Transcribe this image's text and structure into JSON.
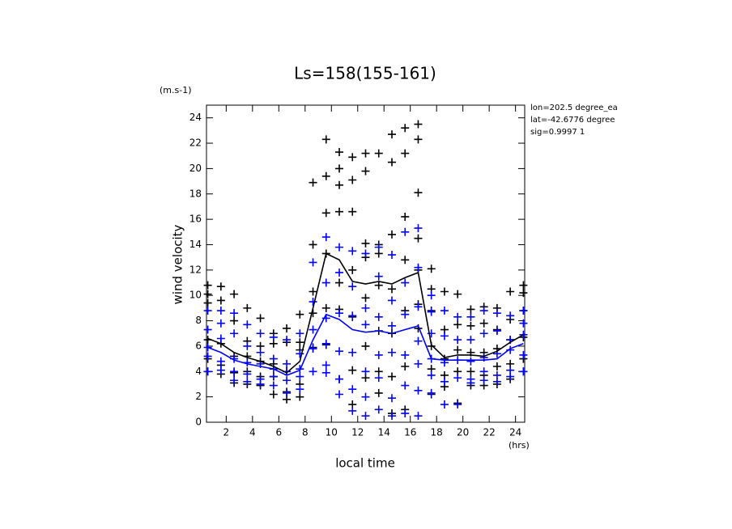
{
  "chart_data": {
    "type": "scatter",
    "title": "Ls=158(155-161)",
    "y_unit": "(m.s-1)",
    "y_label": "wind velocity",
    "x_label": "local time",
    "x_unit": "(hrs)",
    "annotations": [
      "lon=202.5 degree_ea",
      "lat=-42.6776 degree",
      "sig=0.9997 1"
    ],
    "xlim": [
      0.5,
      24.7
    ],
    "ylim": [
      0,
      25
    ],
    "xticks": [
      2,
      4,
      6,
      8,
      10,
      12,
      14,
      16,
      18,
      20,
      22,
      24
    ],
    "yticks": [
      0,
      2,
      4,
      6,
      8,
      10,
      12,
      14,
      16,
      18,
      20,
      22,
      24
    ],
    "series": [
      {
        "type": "scatter",
        "color": "#000000",
        "x": [
          0.6,
          1.6,
          2.6,
          3.6,
          4.6,
          5.6,
          6.6,
          7.6,
          8.6,
          9.6,
          10.6,
          11.6,
          12.6,
          13.6,
          14.6,
          15.6,
          16.6,
          17.6,
          18.6,
          19.6,
          20.6,
          21.6,
          22.6,
          23.6,
          24.6
        ],
        "values": [
          [
            10.8,
            10.1,
            9.4,
            6.5,
            5.0,
            4.0
          ],
          [
            10.7,
            9.6,
            6.2,
            4.5,
            3.8
          ],
          [
            10.1,
            8.0,
            5.2,
            3.9,
            3.1
          ],
          [
            9.0,
            6.4,
            5.2,
            4.0,
            3.0
          ],
          [
            8.2,
            6.0,
            4.8,
            3.6,
            2.9
          ],
          [
            7.0,
            6.2,
            4.6,
            3.6,
            2.2
          ],
          [
            7.4,
            6.3,
            4.0,
            2.4,
            1.8
          ],
          [
            8.5,
            6.3,
            5.7,
            3.0,
            2.0
          ],
          [
            18.9,
            14.0,
            10.3,
            8.6,
            5.9
          ],
          [
            22.3,
            19.4,
            16.5,
            13.3,
            9.0,
            6.1
          ],
          [
            21.3,
            20.0,
            18.7,
            16.6,
            11.0,
            8.9,
            3.4
          ],
          [
            20.9,
            19.1,
            16.6,
            12.0,
            8.3,
            4.1,
            1.4
          ],
          [
            21.2,
            19.8,
            14.1,
            13.0,
            9.8,
            6.0,
            3.5
          ],
          [
            21.2,
            14.0,
            13.3,
            10.8,
            7.2,
            4.0,
            2.3
          ],
          [
            22.7,
            20.5,
            14.8,
            10.5,
            7.0,
            3.6,
            0.7
          ],
          [
            23.2,
            21.2,
            16.2,
            12.8,
            8.8,
            4.4,
            1.0
          ],
          [
            23.5,
            22.3,
            18.1,
            14.5,
            12.0,
            9.3,
            7.4
          ],
          [
            12.1,
            10.5,
            8.8,
            6.0,
            4.2,
            2.2
          ],
          [
            10.3,
            7.3,
            5.0,
            3.7,
            2.8
          ],
          [
            10.1,
            7.7,
            5.7,
            4.0,
            1.5
          ],
          [
            8.9,
            7.6,
            5.5,
            4.0,
            2.9
          ],
          [
            9.1,
            7.8,
            5.5,
            3.7,
            2.9
          ],
          [
            9.0,
            7.3,
            5.8,
            4.4,
            3.0
          ],
          [
            10.3,
            8.1,
            6.5,
            4.6,
            3.4
          ],
          [
            10.8,
            10.2,
            8.8,
            6.7,
            5.0,
            4.0
          ]
        ]
      },
      {
        "type": "scatter",
        "color": "#0000ff",
        "x": [
          0.6,
          1.6,
          2.6,
          3.6,
          4.6,
          5.6,
          6.6,
          7.6,
          8.6,
          9.6,
          10.6,
          11.6,
          12.6,
          13.6,
          14.6,
          15.6,
          16.6,
          17.6,
          18.6,
          19.6,
          20.6,
          21.6,
          22.6,
          23.6,
          24.6
        ],
        "values": [
          [
            8.8,
            7.3,
            5.9,
            5.2,
            4.0
          ],
          [
            8.8,
            7.8,
            6.6,
            4.8,
            4.1
          ],
          [
            8.6,
            7.0,
            5.0,
            4.0,
            3.3
          ],
          [
            7.7,
            6.0,
            4.7,
            3.8,
            3.2
          ],
          [
            7.0,
            5.5,
            4.6,
            3.4,
            3.0
          ],
          [
            6.7,
            5.0,
            4.2,
            3.6,
            2.9
          ],
          [
            6.5,
            4.6,
            4.0,
            3.3,
            2.3
          ],
          [
            7.0,
            5.4,
            4.2,
            3.6,
            2.6
          ],
          [
            12.6,
            9.5,
            7.3,
            5.8,
            4.0
          ],
          [
            14.6,
            11.0,
            8.2,
            6.2,
            4.5,
            3.9
          ],
          [
            13.8,
            11.8,
            8.6,
            5.6,
            3.4,
            2.2
          ],
          [
            13.5,
            10.7,
            8.4,
            5.5,
            2.6,
            0.9
          ],
          [
            13.3,
            9.0,
            7.7,
            4.0,
            2.0,
            0.5
          ],
          [
            13.8,
            11.5,
            8.3,
            5.3,
            3.5,
            1.0
          ],
          [
            13.2,
            9.6,
            7.6,
            5.5,
            1.9,
            0.5
          ],
          [
            15.0,
            11.0,
            8.5,
            5.3,
            2.9,
            0.7
          ],
          [
            15.3,
            12.2,
            9.1,
            6.4,
            4.6,
            2.5,
            0.5
          ],
          [
            10.0,
            8.7,
            7.0,
            5.0,
            3.7,
            2.3
          ],
          [
            8.8,
            6.8,
            4.7,
            3.2,
            1.4
          ],
          [
            8.3,
            6.5,
            4.9,
            3.5,
            1.4
          ],
          [
            8.3,
            6.5,
            4.8,
            3.4,
            3.1
          ],
          [
            8.8,
            7.0,
            5.1,
            4.0,
            3.3
          ],
          [
            8.6,
            7.2,
            5.4,
            3.7,
            3.2
          ],
          [
            8.4,
            6.5,
            5.7,
            4.1,
            3.6
          ],
          [
            8.8,
            7.8,
            6.9,
            5.3,
            4.0
          ]
        ]
      },
      {
        "type": "line",
        "color": "#000000",
        "x": [
          0.6,
          1.6,
          2.6,
          3.6,
          4.6,
          5.6,
          6.6,
          7.6,
          8.6,
          9.6,
          10.6,
          11.6,
          12.6,
          13.6,
          14.6,
          15.6,
          16.6,
          17.6,
          18.6,
          19.6,
          20.6,
          21.6,
          22.6,
          23.6,
          24.6
        ],
        "values": [
          6.6,
          6.2,
          5.5,
          5.1,
          4.8,
          4.4,
          3.9,
          4.8,
          9.0,
          13.3,
          12.8,
          11.1,
          10.9,
          11.1,
          10.9,
          11.4,
          11.8,
          6.1,
          5.1,
          5.3,
          5.3,
          5.2,
          5.6,
          6.3,
          6.9
        ]
      },
      {
        "type": "line",
        "color": "#0000ff",
        "x": [
          0.6,
          1.6,
          2.6,
          3.6,
          4.6,
          5.6,
          6.6,
          7.6,
          8.6,
          9.6,
          10.6,
          11.6,
          12.6,
          13.6,
          14.6,
          15.6,
          16.6,
          17.6,
          18.6,
          19.6,
          20.6,
          21.6,
          22.6,
          23.6,
          24.6
        ],
        "values": [
          5.9,
          5.5,
          4.9,
          4.6,
          4.4,
          4.2,
          3.7,
          4.1,
          6.5,
          8.5,
          8.1,
          7.3,
          7.1,
          7.2,
          7.0,
          7.3,
          7.6,
          5.0,
          4.9,
          4.9,
          4.9,
          4.9,
          5.0,
          5.8,
          6.2
        ]
      }
    ]
  }
}
